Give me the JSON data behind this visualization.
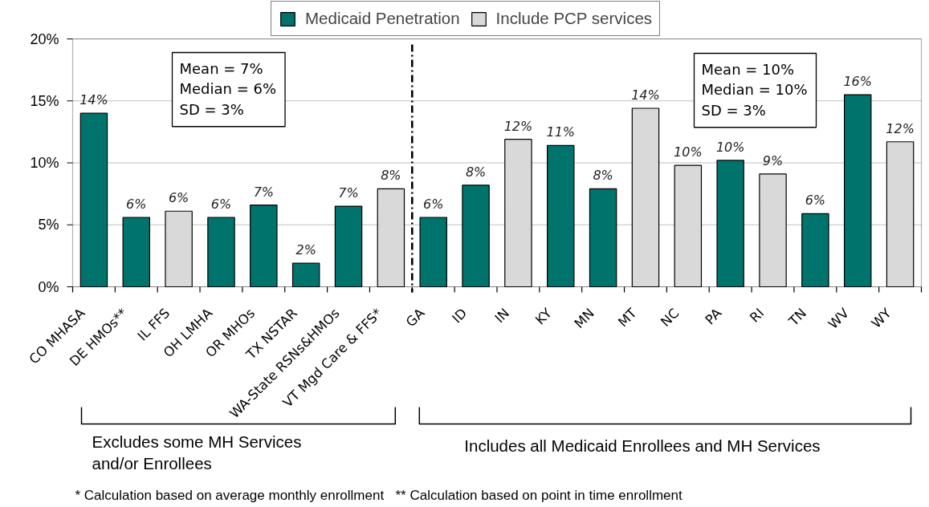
{
  "chart_data": {
    "type": "bar",
    "categories": [
      "CO MHASA",
      "DE HMOs**",
      "IL FFS",
      "OH LMHA",
      "OR MHOs",
      "TX NSTAR",
      "WA-State RSNs&HMOs",
      "VT Mgd Care & FFS*",
      "GA",
      "ID",
      "IN",
      "KY",
      "MN",
      "MT",
      "NC",
      "PA",
      "RI",
      "TN",
      "WV",
      "WY"
    ],
    "series": [
      {
        "name": "Medicaid Penetration",
        "color": "#00736c",
        "values": [
          14.0,
          5.6,
          null,
          5.6,
          6.6,
          1.9,
          6.5,
          null,
          5.6,
          8.2,
          null,
          11.4,
          7.9,
          null,
          null,
          10.2,
          null,
          5.9,
          15.5,
          null
        ],
        "value_labels": [
          "14%",
          "6%",
          null,
          "6%",
          "7%",
          "2%",
          "7%",
          null,
          "6%",
          "8%",
          null,
          "11%",
          "8%",
          null,
          null,
          "10%",
          null,
          "6%",
          "16%",
          null
        ]
      },
      {
        "name": "Include PCP services",
        "color": "#d9d9d9",
        "values": [
          null,
          null,
          6.1,
          null,
          null,
          null,
          null,
          7.9,
          null,
          null,
          11.9,
          null,
          null,
          14.4,
          9.8,
          null,
          9.1,
          null,
          null,
          11.7
        ],
        "value_labels": [
          null,
          null,
          "6%",
          null,
          null,
          null,
          null,
          "8%",
          null,
          null,
          "12%",
          null,
          null,
          "14%",
          "10%",
          null,
          "9%",
          null,
          null,
          "12%"
        ]
      }
    ],
    "ylim": [
      0,
      20
    ],
    "yticks": [
      {
        "value": 0,
        "label": "0%"
      },
      {
        "value": 5,
        "label": "5%"
      },
      {
        "value": 10,
        "label": "10%"
      },
      {
        "value": 15,
        "label": "15%"
      },
      {
        "value": 20,
        "label": "20%"
      }
    ],
    "grid": "y",
    "legend": "top",
    "ref_lines": [
      {
        "axis": "x",
        "value": "GA",
        "line_style": "dashed",
        "color": "#000000"
      }
    ],
    "annotations": [
      "Mean = 7%\nMedian = 6%\nSD = 3%",
      "Mean = 10%\nMedian = 10%\nSD = 3%",
      "Excludes some MH Services\nand/or Enrollees",
      "Includes all Medicaid Enrollees and MH Services",
      "* Calculation based on average monthly enrollment",
      "** Calculation based on point in time enrollment"
    ]
  }
}
